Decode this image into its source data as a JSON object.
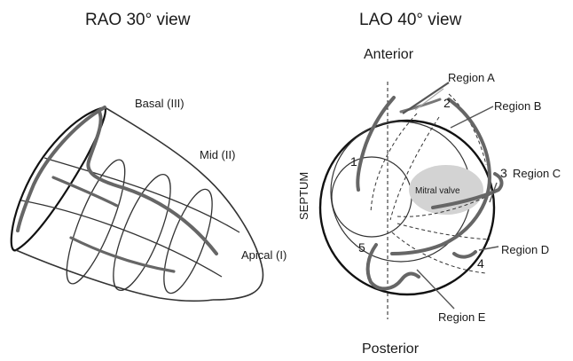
{
  "left_view": {
    "title": "RAO 30° view",
    "labels": {
      "basal": "Basal (III)",
      "mid": "Mid (II)",
      "apical": "Apical (I)"
    }
  },
  "right_view": {
    "title": "LAO 40° view",
    "anterior": "Anterior",
    "posterior": "Posterior",
    "septum": "SEPTUM",
    "mitral_valve": "Mitral valve",
    "regions": {
      "a": "Region A",
      "b": "Region B",
      "c": "Region C",
      "d": "Region D",
      "e": "Region E"
    },
    "numbers": {
      "n1": "1",
      "n2": "2",
      "n3": "3",
      "n4": "4",
      "n5": "5"
    }
  }
}
